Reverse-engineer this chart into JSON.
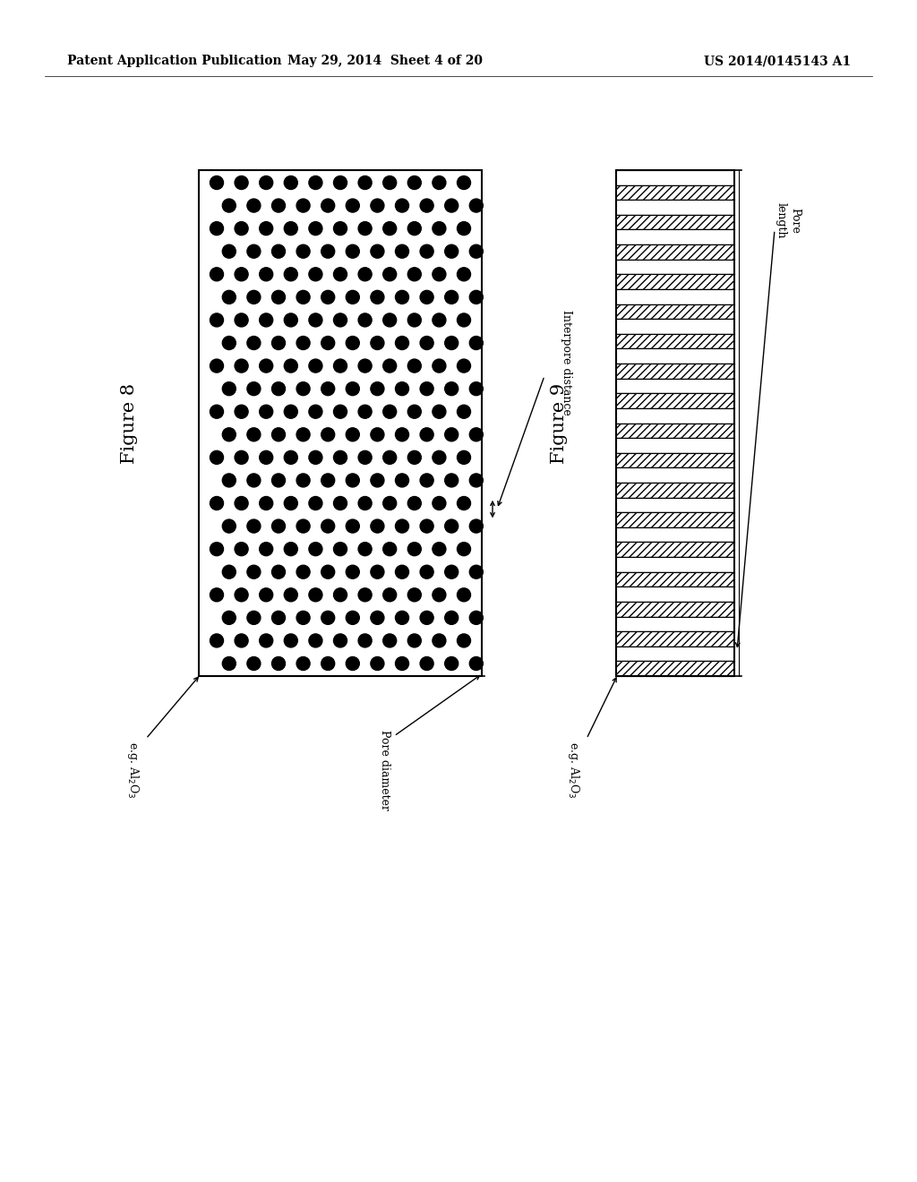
{
  "header_left": "Patent Application Publication",
  "header_center": "May 29, 2014  Sheet 4 of 20",
  "header_right": "US 2014/0145143 A1",
  "fig8_label": "Figure 8",
  "fig9_label": "Figure 9",
  "fig8_label_al2o3": "e.g. Al$_2$O$_3$",
  "fig8_label_pore_diam": "Pore diameter",
  "fig8_label_interpore": "Interpore distance",
  "fig9_label_al2o3": "e.g. Al$_2$O$_3$",
  "fig9_label_pore_length": "Pore\nlength",
  "dot_color": "#000000",
  "bg_color": "#ffffff",
  "line_color": "#000000",
  "text_color": "#000000",
  "header_fontsize": 10,
  "fig_label_fontsize": 15,
  "annotation_fontsize": 9
}
